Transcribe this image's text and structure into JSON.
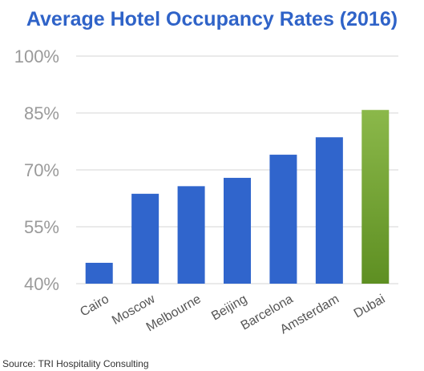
{
  "chart_data": {
    "type": "bar",
    "title": "Average Hotel Occupancy Rates (2016)",
    "categories": [
      "Cairo",
      "Moscow",
      "Melbourne",
      "Beijing",
      "Barcelona",
      "Amsterdam",
      "Dubai"
    ],
    "values": [
      45.5,
      63.7,
      65.7,
      67.9,
      74,
      78.6,
      85.8
    ],
    "ylim": [
      40,
      100
    ],
    "yticks": [
      40,
      55,
      70,
      85,
      100
    ],
    "ytick_labels": [
      "40%",
      "55%",
      "70%",
      "85%",
      "100%"
    ],
    "xlabel": "",
    "ylabel": "",
    "grid": true,
    "colors": {
      "default_bar": "#3065cc",
      "highlight_bar_top": "#8bb84a",
      "highlight_bar_bottom": "#5e8f22",
      "highlight_category": "Dubai",
      "title": "#2f63c8",
      "tick_label": "#9a9a9a",
      "grid": "#d6d6d6"
    }
  },
  "source": "Source: TRI Hospitality Consulting"
}
